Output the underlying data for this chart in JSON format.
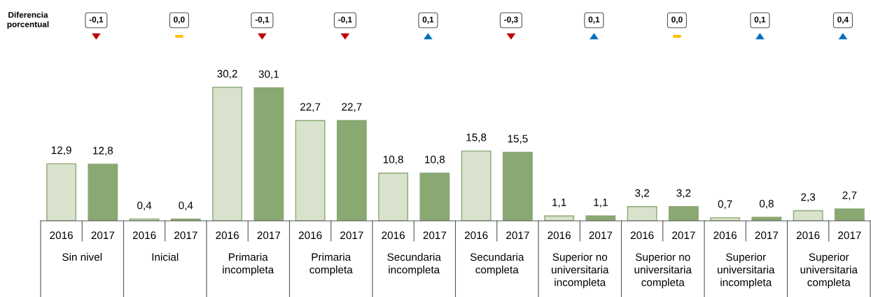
{
  "chart_data": {
    "type": "bar",
    "categories": [
      "Sin nivel",
      "Inicial",
      "Primaria\nincompleta",
      "Primaria\ncompleta",
      "Secundaria\nincompleta",
      "Secundaria\ncompleta",
      "Superior no\nuniversitaria\nincompleta",
      "Superior no\nuniversitaria\ncompleta",
      "Superior\nuniversitaria\nincompleta",
      "Superior\nuniversitaria\ncompleta"
    ],
    "series": [
      {
        "name": "2016",
        "color": "#d8e2cd",
        "values": [
          12.9,
          0.4,
          30.2,
          22.7,
          10.8,
          15.8,
          1.1,
          3.2,
          0.7,
          2.3
        ],
        "value_labels": [
          "12,9",
          "0,4",
          "30,2",
          "22,7",
          "10,8",
          "15,8",
          "1,1",
          "3,2",
          "0,7",
          "2,3"
        ]
      },
      {
        "name": "2017",
        "color": "#8aa872",
        "values": [
          12.8,
          0.4,
          30.1,
          22.7,
          10.8,
          15.5,
          1.1,
          3.2,
          0.8,
          2.7
        ],
        "value_labels": [
          "12,8",
          "0,4",
          "30,1",
          "22,7",
          "10,8",
          "15,5",
          "1,1",
          "3,2",
          "0,8",
          "2,7"
        ]
      }
    ],
    "annotations": [
      "Diferencia porcentual",
      "-0,1",
      "0,0",
      "-0,1",
      "-0,1",
      "0,1",
      "-0,3",
      "0,1",
      "0,0",
      "0,1",
      "0,4"
    ],
    "legend": false
  }
}
